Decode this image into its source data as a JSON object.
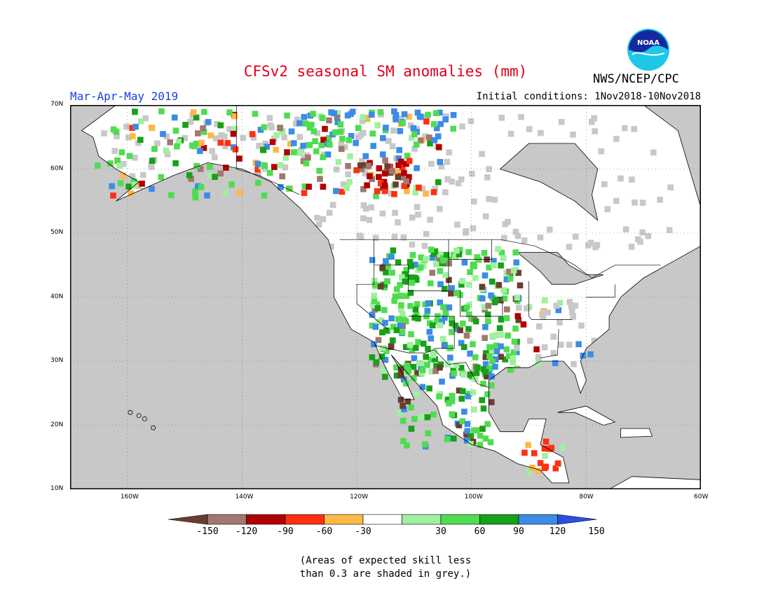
{
  "header": {
    "title": "CFSv2 seasonal SM anomalies (mm)",
    "season": "Mar-Apr-May 2019",
    "initial_conditions": "Initial conditions: 1Nov2018-10Nov2018",
    "agency": "NWS/NCEP/CPC",
    "logo_text": "NOAA"
  },
  "map": {
    "lat_labels": [
      "70N",
      "60N",
      "50N",
      "40N",
      "30N",
      "20N",
      "10N"
    ],
    "lon_labels": [
      "160W",
      "140W",
      "120W",
      "100W",
      "80W",
      "60W"
    ],
    "low_skill_color": "#c8c8c8",
    "water_color": "#c8c8c8"
  },
  "legend": {
    "labels": [
      "-150",
      "-120",
      "-90",
      "-60",
      "-30",
      "30",
      "60",
      "90",
      "120",
      "150"
    ],
    "colors": [
      "#6b3d2e",
      "#a07870",
      "#b00000",
      "#ff3010",
      "#ffb845",
      "#ffffff",
      "#a0f0a0",
      "#50dc50",
      "#18a018",
      "#3c8ce6",
      "#2850e0"
    ]
  },
  "note": {
    "line1": "(Areas of expected skill less",
    "line2": "than 0.3 are shaded in grey.)"
  }
}
